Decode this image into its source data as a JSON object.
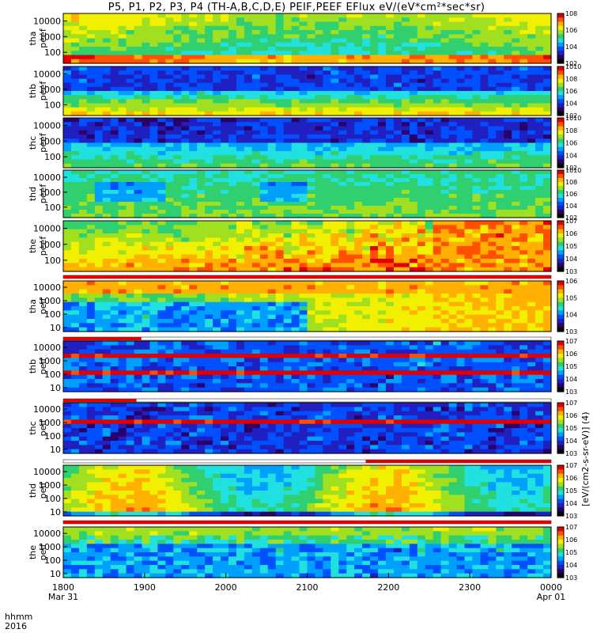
{
  "title": "P5, P1, P2, P3, P4 (TH-A,B,C,D,E) PEIF,PEEF EFlux eV/(eV*cm²*sec*sr)",
  "colorbar_label": "[eV/(cm2-s-sr-eV)] (4)",
  "colors": {
    "palette": [
      "#000000",
      "#2a006a",
      "#2020c0",
      "#0050ff",
      "#00a0ff",
      "#20e0e0",
      "#30d070",
      "#a0e020",
      "#f0f000",
      "#ffb000",
      "#ff5000",
      "#e00000"
    ],
    "flag_red": "#e00000"
  },
  "time_axis": {
    "corner_top": "hhmm",
    "corner_bottom": "2016",
    "ticks": [
      "1800",
      "1900",
      "2000",
      "2100",
      "2200",
      "2300",
      "0000"
    ],
    "tick_dates": {
      "first": "Mar 31",
      "last": "Apr 01"
    },
    "range_hhmm": [
      "1800",
      "0000"
    ]
  },
  "chart_data": {
    "type": "heatmap",
    "title": "P5, P1, P2, P3, P4 (TH-A,B,C,D,E) PEIF,PEEF EFlux eV/(eV*cm²*sec*sr)",
    "x_axis": {
      "label": "hhmm",
      "ticks": [
        "1800",
        "1900",
        "2000",
        "2100",
        "2200",
        "2300",
        "0000"
      ],
      "start": "2016-03-31 18:00",
      "end": "2016-04-01 00:00"
    },
    "y_scale": "log",
    "z_scale": "log",
    "panels": [
      {
        "name": "tha peef",
        "y_ticks": [
          "10000",
          "1000",
          "100"
        ],
        "ylim": [
          20,
          30000
        ],
        "cbar_ticks": [
          "10^2",
          "10^4",
          "10^6",
          "10^8"
        ],
        "zlim": [
          100,
          100000000
        ]
      },
      {
        "name": "thb peef",
        "y_ticks": [
          "10000",
          "1000",
          "100"
        ],
        "ylim": [
          20,
          30000
        ],
        "cbar_ticks": [
          "10^2",
          "10^4",
          "10^6",
          "10^8",
          "10^10"
        ],
        "zlim": [
          100,
          10000000000
        ]
      },
      {
        "name": "thc peef",
        "y_ticks": [
          "10000",
          "1000",
          "100"
        ],
        "ylim": [
          20,
          30000
        ],
        "cbar_ticks": [
          "10^2",
          "10^4",
          "10^6",
          "10^8",
          "10^10"
        ],
        "zlim": [
          100,
          10000000000
        ]
      },
      {
        "name": "thd peef",
        "y_ticks": [
          "10000",
          "1000",
          "100"
        ],
        "ylim": [
          20,
          30000
        ],
        "cbar_ticks": [
          "10^2",
          "10^4",
          "10^6",
          "10^8",
          "10^10"
        ],
        "zlim": [
          100,
          10000000000
        ]
      },
      {
        "name": "the peef",
        "y_ticks": [
          "10000",
          "1000",
          "100"
        ],
        "ylim": [
          20,
          30000
        ],
        "cbar_ticks": [
          "10^3",
          "10^4",
          "10^5",
          "10^6",
          "10^7"
        ],
        "zlim": [
          1000,
          10000000
        ]
      },
      {
        "name": "tha peif",
        "y_ticks": [
          "10000",
          "1000",
          "100",
          "10"
        ],
        "ylim": [
          5,
          30000
        ],
        "cbar_ticks": [
          "10^3",
          "10^4",
          "10^5",
          "10^6"
        ],
        "zlim": [
          1000,
          1000000
        ]
      },
      {
        "name": "thb peif",
        "y_ticks": [
          "10000",
          "1000",
          "100",
          "10"
        ],
        "ylim": [
          5,
          30000
        ],
        "cbar_ticks": [
          "10^3",
          "10^4",
          "10^5",
          "10^6",
          "10^7"
        ],
        "zlim": [
          1000,
          10000000
        ]
      },
      {
        "name": "thc peif",
        "y_ticks": [
          "10000",
          "1000",
          "100",
          "10"
        ],
        "ylim": [
          5,
          30000
        ],
        "cbar_ticks": [
          "10^3",
          "10^4",
          "10^5",
          "10^6",
          "10^7"
        ],
        "zlim": [
          1000,
          10000000
        ]
      },
      {
        "name": "thd peif",
        "y_ticks": [
          "10000",
          "1000",
          "100",
          "10"
        ],
        "ylim": [
          5,
          30000
        ],
        "cbar_ticks": [
          "10^3",
          "10^4",
          "10^5",
          "10^6",
          "10^7"
        ],
        "zlim": [
          1000,
          10000000
        ]
      },
      {
        "name": "the peif",
        "y_ticks": [
          "10000",
          "1000",
          "100",
          "10"
        ],
        "ylim": [
          5,
          30000
        ],
        "cbar_ticks": [
          "10^3",
          "10^4",
          "10^5",
          "10^6",
          "10^7"
        ],
        "zlim": [
          1000,
          10000000
        ]
      }
    ]
  }
}
